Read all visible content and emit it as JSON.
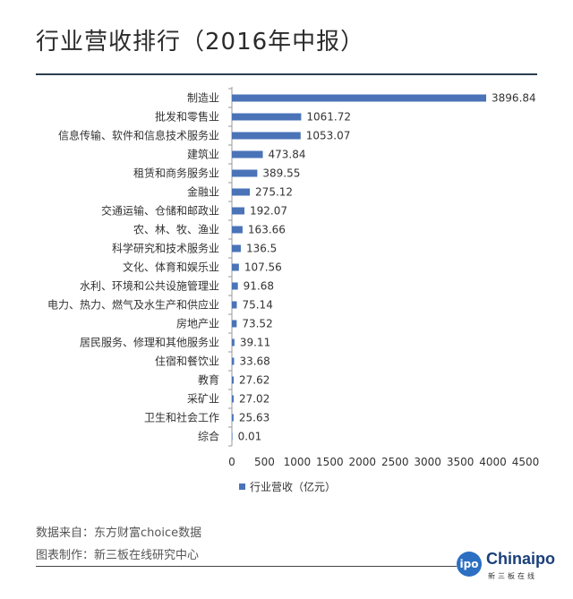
{
  "title": "行业营收排行（2016年中报）",
  "chart_data": {
    "type": "bar",
    "orientation": "horizontal",
    "categories": [
      "制造业",
      "批发和零售业",
      "信息传输、软件和信息技术服务业",
      "建筑业",
      "租赁和商务服务业",
      "金融业",
      "交通运输、仓储和邮政业",
      "农、林、牧、渔业",
      "科学研究和技术服务业",
      "文化、体育和娱乐业",
      "水利、环境和公共设施管理业",
      "电力、热力、燃气及水生产和供应业",
      "房地产业",
      "居民服务、修理和其他服务业",
      "住宿和餐饮业",
      "教育",
      "采矿业",
      "卫生和社会工作",
      "综合"
    ],
    "values": [
      3896.84,
      1061.72,
      1053.07,
      473.84,
      389.55,
      275.12,
      192.07,
      163.66,
      136.5,
      107.56,
      91.68,
      75.14,
      73.52,
      39.11,
      33.68,
      27.62,
      27.02,
      25.63,
      0.01
    ],
    "value_labels": [
      "3896.84",
      "1061.72",
      "1053.07",
      "473.84",
      "389.55",
      "275.12",
      "192.07",
      "163.66",
      "136.5",
      "107.56",
      "91.68",
      "75.14",
      "73.52",
      "39.11",
      "33.68",
      "27.62",
      "27.02",
      "25.63",
      "0.01"
    ],
    "series": [
      {
        "name": "行业营收（亿元）"
      }
    ],
    "xlim": [
      0,
      4500
    ],
    "xticks": [
      "0",
      "500",
      "1000",
      "1500",
      "2000",
      "2500",
      "3000",
      "3500",
      "4000",
      "4500"
    ],
    "grid": false,
    "legend": "bottom",
    "bar_color": "#4a73b8"
  },
  "footer": {
    "source": "数据来自：东方财富choice数据",
    "maker": "图表制作：新三板在线研究中心"
  },
  "logo": {
    "mark": "ipo",
    "name": "Chinaipo",
    "tagline": "新三板在线"
  }
}
